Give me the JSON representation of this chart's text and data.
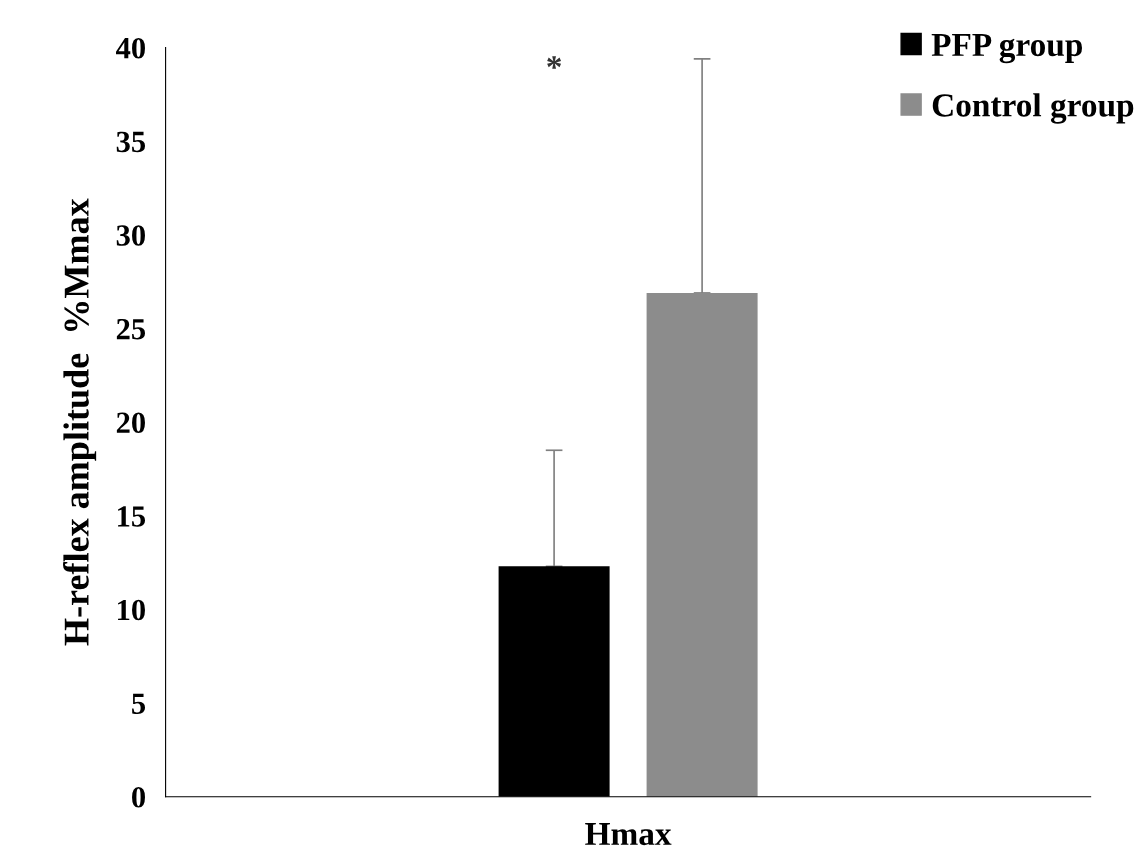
{
  "chart_data": {
    "type": "bar",
    "ylabel": "H-reflex amplitude  %Mmax",
    "categories": [
      "Hmax"
    ],
    "series": [
      {
        "name": "PFP group",
        "color": "#000000",
        "values": [
          12.3
        ],
        "errors": [
          [
            12.3,
            18.5
          ]
        ]
      },
      {
        "name": "Control group",
        "color": "#8c8c8c",
        "values": [
          26.9
        ],
        "errors": [
          [
            26.9,
            39.4
          ]
        ]
      }
    ],
    "ylim": [
      0,
      40
    ],
    "yticks": [
      0,
      5,
      10,
      15,
      20,
      25,
      30,
      35,
      40
    ],
    "annotations": [
      "*"
    ],
    "grid": false,
    "legend": "top right"
  }
}
